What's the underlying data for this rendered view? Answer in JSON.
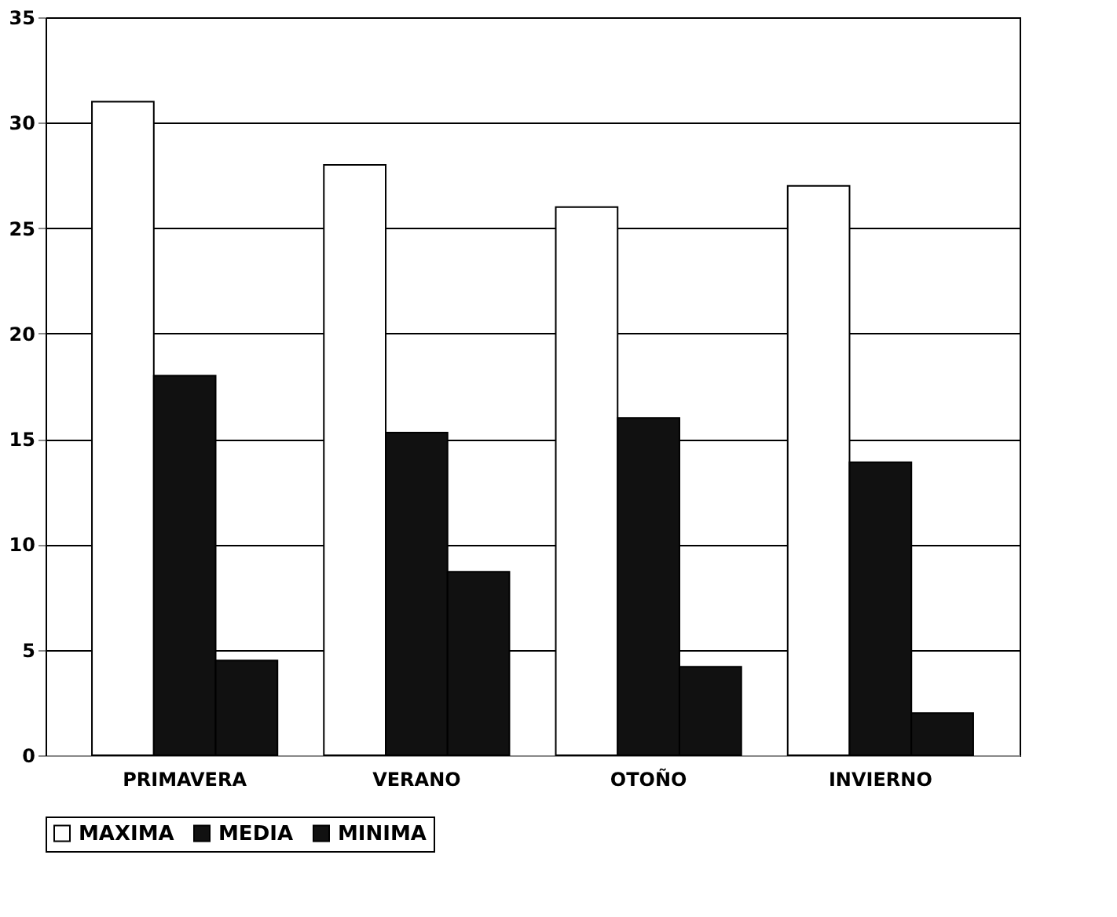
{
  "chart_data": {
    "type": "bar",
    "categories": [
      "PRIMAVERA",
      "VERANO",
      "OTOÑO",
      "INVIERNO"
    ],
    "series": [
      {
        "name": "MAXIMA",
        "color": "#ffffff",
        "values": [
          31,
          28,
          26,
          27
        ]
      },
      {
        "name": "MEDIA",
        "color": "#111111",
        "values": [
          18,
          15.3,
          16,
          13.9
        ]
      },
      {
        "name": "MINIMA",
        "color": "#111111",
        "values": [
          4.5,
          8.7,
          4.2,
          2
        ]
      }
    ],
    "ylim": [
      0,
      35
    ],
    "yticks": [
      0,
      5,
      10,
      15,
      20,
      25,
      30,
      35
    ],
    "grid": "y",
    "legend": "bottom"
  }
}
